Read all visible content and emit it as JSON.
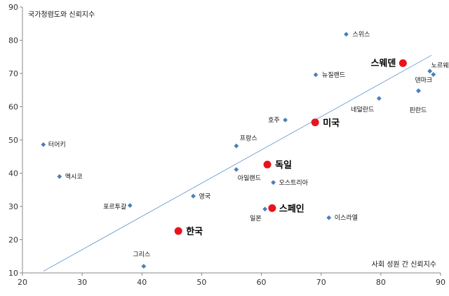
{
  "chart_data": {
    "type": "scatter",
    "title": "국가청렴도와 신뢰지수",
    "xlabel": "사회 성원 간 신뢰지수",
    "ylabel": "",
    "xlim": [
      20,
      90
    ],
    "ylim": [
      10,
      90
    ],
    "xticks": [
      "20",
      "30",
      "40",
      "50",
      "60",
      "70",
      "80",
      "90"
    ],
    "yticks": [
      "10",
      "20",
      "30",
      "40",
      "50",
      "60",
      "70",
      "80",
      "90"
    ],
    "grid": false,
    "legend": "none",
    "colors": {
      "point": "#4A7EBB",
      "highlight": "#E8141C",
      "trend": "#7AA6D6",
      "axis": "#888888"
    },
    "trendline": {
      "from": [
        23.5,
        10.5
      ],
      "to": [
        88.5,
        75.5
      ]
    },
    "points": [
      {
        "label": "스위스",
        "x": 74.2,
        "y": 81.8,
        "highlight": false
      },
      {
        "label": "노르웨이",
        "x": 88.2,
        "y": 70.7,
        "highlight": false
      },
      {
        "label": "",
        "x": 88.8,
        "y": 69.7,
        "highlight": false
      },
      {
        "label": "덴마크",
        "x": 86.3,
        "y": 64.8,
        "highlight": false
      },
      {
        "label": "뉴질랜드",
        "x": 69.1,
        "y": 69.6,
        "highlight": false
      },
      {
        "label": "네덜란드",
        "x": 79.7,
        "y": 62.5,
        "highlight": false
      },
      {
        "label": "핀란드",
        "x": 86.3,
        "y": 64.8,
        "highlight": false
      },
      {
        "label": "호주",
        "x": 64.0,
        "y": 56.0,
        "highlight": false
      },
      {
        "label": "프랑스",
        "x": 55.8,
        "y": 48.2,
        "highlight": false
      },
      {
        "label": "아일랜드",
        "x": 55.8,
        "y": 41.1,
        "highlight": false
      },
      {
        "label": "오스트리아",
        "x": 62.0,
        "y": 37.2,
        "highlight": false
      },
      {
        "label": "터어키",
        "x": 23.5,
        "y": 48.6,
        "highlight": false
      },
      {
        "label": "멕시코",
        "x": 26.2,
        "y": 39.0,
        "highlight": false
      },
      {
        "label": "영국",
        "x": 48.6,
        "y": 33.1,
        "highlight": false
      },
      {
        "label": "포르투갈",
        "x": 38.0,
        "y": 30.3,
        "highlight": false
      },
      {
        "label": "일본",
        "x": 60.6,
        "y": 29.2,
        "highlight": false
      },
      {
        "label": "이스라엘",
        "x": 71.3,
        "y": 26.6,
        "highlight": false
      },
      {
        "label": "그리스",
        "x": 40.3,
        "y": 12.0,
        "highlight": false
      },
      {
        "label": "스웨덴",
        "x": 83.7,
        "y": 73.1,
        "highlight": true
      },
      {
        "label": "미국",
        "x": 69.0,
        "y": 55.3,
        "highlight": true
      },
      {
        "label": "독일",
        "x": 61.0,
        "y": 42.6,
        "highlight": true
      },
      {
        "label": "스페인",
        "x": 61.8,
        "y": 29.5,
        "highlight": true
      },
      {
        "label": "한국",
        "x": 46.1,
        "y": 22.6,
        "highlight": true
      }
    ]
  }
}
